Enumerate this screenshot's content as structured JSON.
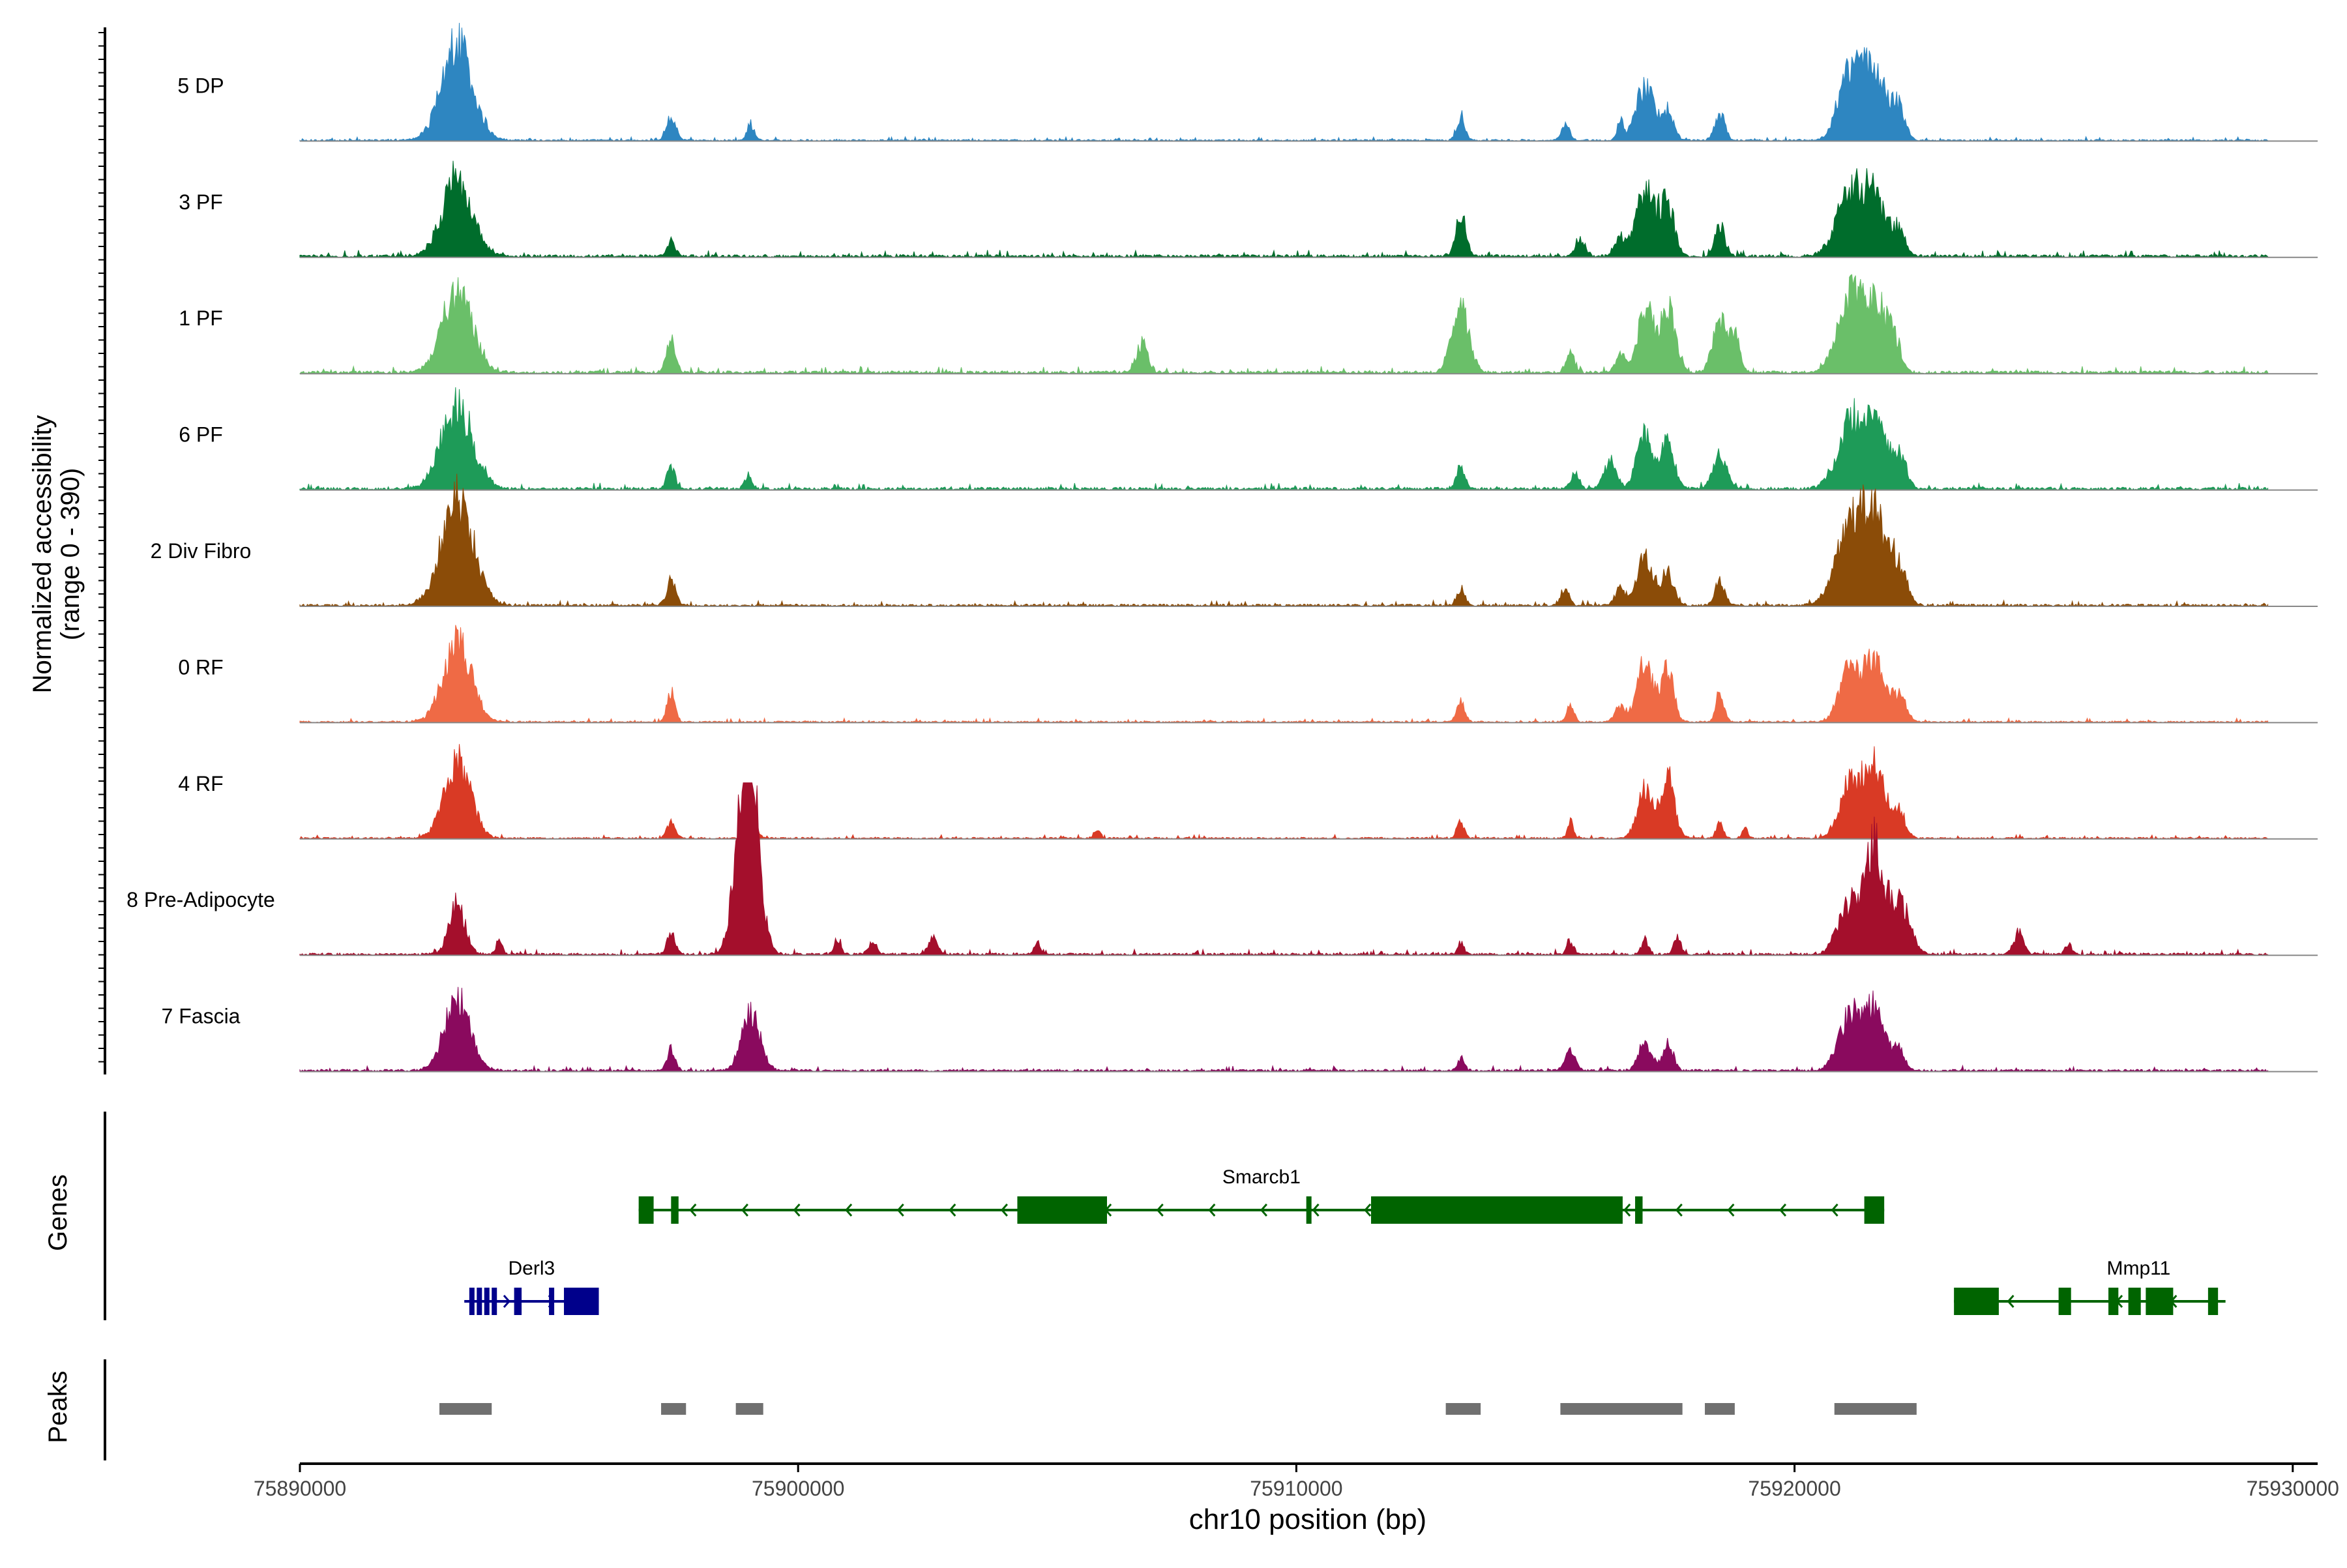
{
  "chart_data": {
    "type": "area",
    "subtype": "genome-browser coverage plot",
    "ylabel_line1": "Normalized accessibility",
    "ylabel_line2": "(range 0 - 390)",
    "y_range": [
      0,
      390
    ],
    "xlabel": "chr10 position (bp)",
    "x_range": [
      75890000,
      75930500
    ],
    "x_ticks": [
      75890000,
      75900000,
      75910000,
      75920000,
      75930000
    ],
    "x_tick_labels": [
      "75890000",
      "75900000",
      "75910000",
      "75920000",
      "75930000"
    ],
    "tracks": [
      {
        "name": "5 DP",
        "color": "#2e86c1",
        "noise": 0.03,
        "peaks": [
          [
            75893160,
            310,
            230
          ],
          [
            75897450,
            90,
            60
          ],
          [
            75899050,
            70,
            40
          ],
          [
            75913300,
            80,
            60
          ],
          [
            75915400,
            80,
            40
          ],
          [
            75916500,
            60,
            50
          ],
          [
            75917000,
            180,
            130
          ],
          [
            75917450,
            120,
            70
          ],
          [
            75918500,
            100,
            65
          ],
          [
            75921100,
            220,
            160
          ],
          [
            75921600,
            260,
            170
          ],
          [
            75922100,
            120,
            60
          ]
        ]
      },
      {
        "name": "3 PF",
        "color": "#006d2c",
        "noise": 0.05,
        "peaks": [
          [
            75893160,
            300,
            180
          ],
          [
            75897450,
            80,
            40
          ],
          [
            75913300,
            100,
            100
          ],
          [
            75915700,
            100,
            40
          ],
          [
            75916500,
            100,
            40
          ],
          [
            75917000,
            190,
            160
          ],
          [
            75917450,
            140,
            120
          ],
          [
            75918500,
            100,
            75
          ],
          [
            75921100,
            260,
            150
          ],
          [
            75921600,
            240,
            130
          ],
          [
            75922100,
            140,
            50
          ]
        ]
      },
      {
        "name": "1 PF",
        "color": "#6abf69",
        "noise": 0.05,
        "peaks": [
          [
            75893160,
            300,
            200
          ],
          [
            75897450,
            90,
            80
          ],
          [
            75906900,
            110,
            70
          ],
          [
            75913300,
            170,
            150
          ],
          [
            75915500,
            80,
            50
          ],
          [
            75916500,
            90,
            50
          ],
          [
            75917000,
            150,
            160
          ],
          [
            75917450,
            150,
            160
          ],
          [
            75918500,
            140,
            120
          ],
          [
            75918800,
            100,
            80
          ],
          [
            75921100,
            250,
            160
          ],
          [
            75921600,
            250,
            170
          ],
          [
            75922000,
            120,
            60
          ]
        ]
      },
      {
        "name": "6 PF",
        "color": "#1e9b58",
        "noise": 0.05,
        "peaks": [
          [
            75893160,
            310,
            200
          ],
          [
            75897450,
            80,
            50
          ],
          [
            75899000,
            70,
            35
          ],
          [
            75913300,
            90,
            50
          ],
          [
            75915600,
            80,
            40
          ],
          [
            75916300,
            120,
            70
          ],
          [
            75917000,
            160,
            130
          ],
          [
            75917450,
            140,
            110
          ],
          [
            75918500,
            130,
            90
          ],
          [
            75921100,
            260,
            140
          ],
          [
            75921600,
            250,
            150
          ],
          [
            75922100,
            140,
            70
          ]
        ]
      },
      {
        "name": "2 Div Fibro",
        "color": "#8b4c08",
        "noise": 0.04,
        "peaks": [
          [
            75893160,
            320,
            250
          ],
          [
            75897450,
            90,
            60
          ],
          [
            75913300,
            80,
            40
          ],
          [
            75915400,
            80,
            40
          ],
          [
            75916500,
            100,
            40
          ],
          [
            75917000,
            160,
            120
          ],
          [
            75917450,
            120,
            80
          ],
          [
            75918500,
            100,
            60
          ],
          [
            75921100,
            280,
            170
          ],
          [
            75921600,
            250,
            200
          ],
          [
            75922100,
            150,
            80
          ]
        ]
      },
      {
        "name": "0 RF",
        "color": "#ef6a45",
        "noise": 0.03,
        "peaks": [
          [
            75893160,
            280,
            190
          ],
          [
            75897450,
            80,
            70
          ],
          [
            75913300,
            80,
            50
          ],
          [
            75915500,
            70,
            40
          ],
          [
            75916500,
            100,
            40
          ],
          [
            75917000,
            160,
            140
          ],
          [
            75917450,
            120,
            130
          ],
          [
            75918500,
            80,
            70
          ],
          [
            75921100,
            200,
            130
          ],
          [
            75921600,
            200,
            140
          ],
          [
            75922100,
            140,
            60
          ]
        ]
      },
      {
        "name": "4 RF",
        "color": "#d93a25",
        "noise": 0.03,
        "peaks": [
          [
            75893160,
            260,
            190
          ],
          [
            75897450,
            80,
            40
          ],
          [
            75899050,
            100,
            60
          ],
          [
            75906000,
            60,
            25
          ],
          [
            75913300,
            70,
            40
          ],
          [
            75915500,
            60,
            40
          ],
          [
            75917000,
            150,
            120
          ],
          [
            75917450,
            140,
            150
          ],
          [
            75918500,
            70,
            40
          ],
          [
            75919000,
            50,
            30
          ],
          [
            75921100,
            200,
            130
          ],
          [
            75921600,
            220,
            170
          ],
          [
            75922100,
            130,
            60
          ]
        ]
      },
      {
        "name": "8 Pre-Adipocyte",
        "color": "#a40f2c",
        "noise": 0.04,
        "peaks": [
          [
            75893160,
            160,
            120
          ],
          [
            75894000,
            60,
            40
          ],
          [
            75897450,
            80,
            50
          ],
          [
            75898900,
            200,
            220
          ],
          [
            75899050,
            190,
            300
          ],
          [
            75900800,
            60,
            40
          ],
          [
            75901500,
            80,
            30
          ],
          [
            75902700,
            90,
            40
          ],
          [
            75904800,
            60,
            30
          ],
          [
            75913300,
            60,
            30
          ],
          [
            75915500,
            70,
            30
          ],
          [
            75917000,
            70,
            35
          ],
          [
            75917650,
            70,
            45
          ],
          [
            75921100,
            220,
            120
          ],
          [
            75921600,
            180,
            250
          ],
          [
            75922100,
            200,
            130
          ],
          [
            75924500,
            100,
            50
          ],
          [
            75925500,
            70,
            25
          ]
        ]
      },
      {
        "name": "7 Fascia",
        "color": "#8a0a5e",
        "noise": 0.04,
        "peaks": [
          [
            75893160,
            260,
            170
          ],
          [
            75897450,
            80,
            50
          ],
          [
            75899050,
            180,
            140
          ],
          [
            75913300,
            70,
            30
          ],
          [
            75915500,
            100,
            50
          ],
          [
            75917000,
            130,
            70
          ],
          [
            75917450,
            110,
            60
          ],
          [
            75921100,
            220,
            130
          ],
          [
            75921600,
            200,
            150
          ],
          [
            75922100,
            120,
            50
          ]
        ]
      }
    ],
    "gene_panel_label": "Genes",
    "genes": [
      {
        "name": "Smarcb1",
        "color": "#006400",
        "strand": "-",
        "start": 75896800,
        "end": 75921800,
        "row": 1,
        "exons": [
          [
            75896800,
            75897100
          ],
          [
            75897450,
            75897600
          ],
          [
            75904400,
            75906200
          ],
          [
            75910200,
            75910300
          ],
          [
            75911500,
            75916550
          ],
          [
            75916800,
            75916950
          ],
          [
            75921400,
            75921800
          ]
        ]
      },
      {
        "name": "Derl3",
        "color": "#00008b",
        "strand": "+",
        "start": 75893300,
        "end": 75896000,
        "row": 2,
        "exons": [
          [
            75893400,
            75893470
          ],
          [
            75893550,
            75893620
          ],
          [
            75893700,
            75893770
          ],
          [
            75893850,
            75893920
          ],
          [
            75894300,
            75894450
          ],
          [
            75895000,
            75895080
          ],
          [
            75895300,
            75896000
          ]
        ]
      },
      {
        "name": "Mmp11",
        "color": "#006400",
        "strand": "-",
        "start": 75923200,
        "end": 75928650,
        "row": 2,
        "exons": [
          [
            75923200,
            75924100
          ],
          [
            75925300,
            75925550
          ],
          [
            75926300,
            75926500
          ],
          [
            75926700,
            75926950
          ],
          [
            75927050,
            75927600
          ],
          [
            75928300,
            75928500
          ]
        ]
      }
    ],
    "peak_panel_label": "Peaks",
    "peak_regions": [
      [
        75892800,
        75893850
      ],
      [
        75897250,
        75897750
      ],
      [
        75898750,
        75899300
      ],
      [
        75913000,
        75913700
      ],
      [
        75915300,
        75917750
      ],
      [
        75918200,
        75918800
      ],
      [
        75920800,
        75922450
      ]
    ]
  }
}
